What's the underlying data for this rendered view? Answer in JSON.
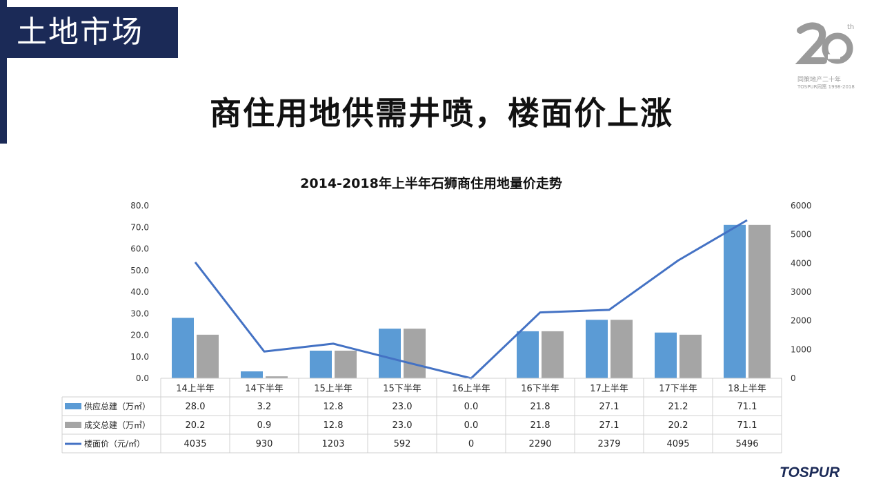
{
  "section_title": "土地市场",
  "headline": "商住用地供需井喷，楼面价上涨",
  "logo": {
    "number": "20",
    "superscript": "th",
    "caption": "同策地产二十年",
    "subcaption": "TOSPUR同策 1998-2018",
    "footer_brand": "TOSPUR"
  },
  "colors": {
    "navy": "#1b2a57",
    "supply": "#5b9bd5",
    "deal": "#a5a5a5",
    "price": "#4472c4"
  },
  "chart_data": {
    "type": "bar",
    "title": "2014-2018年上半年石狮商住用地量价走势",
    "categories": [
      "14上半年",
      "14下半年",
      "15上半年",
      "15下半年",
      "16上半年",
      "16下半年",
      "17上半年",
      "17下半年",
      "18上半年"
    ],
    "series": [
      {
        "name": "供应总建（万㎡）",
        "type": "bar",
        "axis": "left",
        "values": [
          28.0,
          3.2,
          12.8,
          23.0,
          0.0,
          21.8,
          27.1,
          21.2,
          71.1
        ],
        "labels": [
          "28.0",
          "3.2",
          "12.8",
          "23.0",
          "0.0",
          "21.8",
          "27.1",
          "21.2",
          "71.1"
        ]
      },
      {
        "name": "成交总建（万㎡）",
        "type": "bar",
        "axis": "left",
        "values": [
          20.2,
          0.9,
          12.8,
          23.0,
          0.0,
          21.8,
          27.1,
          20.2,
          71.1
        ],
        "labels": [
          "20.2",
          "0.9",
          "12.8",
          "23.0",
          "0.0",
          "21.8",
          "27.1",
          "20.2",
          "71.1"
        ]
      },
      {
        "name": "楼面价（元/㎡）",
        "type": "line",
        "axis": "right",
        "values": [
          4035,
          930,
          1203,
          592,
          0,
          2290,
          2379,
          4095,
          5496
        ],
        "labels": [
          "4035",
          "930",
          "1203",
          "592",
          "0",
          "2290",
          "2379",
          "4095",
          "5496"
        ]
      }
    ],
    "y_left": {
      "range": [
        0,
        80
      ],
      "ticks": [
        "0.0",
        "10.0",
        "20.0",
        "30.0",
        "40.0",
        "50.0",
        "60.0",
        "70.0",
        "80.0"
      ]
    },
    "y_right": {
      "range": [
        0,
        6000
      ],
      "ticks": [
        "0",
        "1000",
        "2000",
        "3000",
        "4000",
        "5000",
        "6000"
      ]
    },
    "legend": "data-table-bottom",
    "grid": false
  }
}
